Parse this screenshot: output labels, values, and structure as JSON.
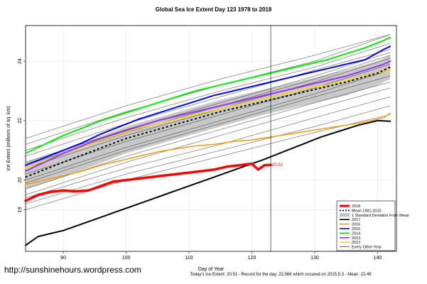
{
  "header": {
    "title": "Global Sea Ice Extent Day 123 1978 to 2018"
  },
  "credit": "http://sunshinehours.wordpress.com",
  "footer": "Today's Ice Extent: 20.51  -  Record for the day: 23.566 which occured on 2015.5.3  -  Mean: 22.49",
  "chart_data": {
    "type": "line",
    "xlabel": "Day of Year",
    "ylabel": "Ice Extent (millions of sq. km)",
    "xlim": [
      84,
      143
    ],
    "ylim": [
      17.6,
      25.2
    ],
    "xticks": [
      90,
      100,
      110,
      120,
      130,
      140
    ],
    "yticks": [
      19,
      20,
      22,
      24
    ],
    "vline_x": 123,
    "current_label": "20.51",
    "legend": {
      "placement": "bottom-right",
      "entries": [
        {
          "label": "2018",
          "color": "#ff0000",
          "style": "thick"
        },
        {
          "label": "Mean 1981-2010",
          "color": "#000000",
          "style": "dashed"
        },
        {
          "label": "1 Standard Deviation From Mean",
          "color": "#c0c0c0",
          "style": "band"
        },
        {
          "label": "2017",
          "color": "#000000",
          "style": "solid"
        },
        {
          "label": "2016",
          "color": "#ff9900",
          "style": "solid"
        },
        {
          "label": "2015",
          "color": "#0000ff",
          "style": "solid"
        },
        {
          "label": "2014",
          "color": "#00ee00",
          "style": "solid"
        },
        {
          "label": "2013",
          "color": "#9933ff",
          "style": "solid"
        },
        {
          "label": "2012",
          "color": "#ffdd00",
          "style": "solid"
        },
        {
          "label": "Every Other Year",
          "color": "#000000",
          "style": "thin"
        }
      ]
    },
    "mean": {
      "x": [
        84,
        90,
        95,
        100,
        105,
        110,
        115,
        120,
        125,
        130,
        135,
        140,
        142
      ],
      "y": [
        20.1,
        20.6,
        21.0,
        21.4,
        21.7,
        22.0,
        22.3,
        22.55,
        22.8,
        23.05,
        23.3,
        23.6,
        23.8
      ]
    },
    "std_band": {
      "x": [
        84,
        90,
        95,
        100,
        105,
        110,
        115,
        120,
        125,
        130,
        135,
        140,
        142
      ],
      "upper": [
        20.6,
        21.0,
        21.4,
        21.8,
        22.1,
        22.4,
        22.7,
        22.95,
        23.2,
        23.45,
        23.7,
        24.0,
        24.2
      ],
      "lower": [
        19.7,
        20.1,
        20.5,
        20.9,
        21.2,
        21.5,
        21.8,
        22.1,
        22.35,
        22.6,
        22.85,
        23.2,
        23.4
      ]
    },
    "series": [
      {
        "name": "2018",
        "color": "#ff0000",
        "width": 3.5,
        "x": [
          84,
          86,
          88,
          90,
          92,
          94,
          96,
          98,
          100,
          102,
          104,
          106,
          108,
          110,
          112,
          114,
          116,
          118,
          120,
          121,
          122,
          123
        ],
        "y": [
          19.3,
          19.5,
          19.6,
          19.65,
          19.62,
          19.65,
          19.8,
          19.95,
          20.0,
          20.05,
          20.1,
          20.15,
          20.2,
          20.25,
          20.3,
          20.35,
          20.45,
          20.5,
          20.55,
          20.35,
          20.5,
          20.51
        ]
      },
      {
        "name": "2017",
        "color": "#000000",
        "width": 2,
        "x": [
          84,
          86,
          88,
          90,
          92,
          94,
          96,
          98,
          100,
          102,
          104,
          106,
          108,
          110,
          112,
          114,
          116,
          118,
          120,
          122,
          125,
          128,
          131,
          134,
          137,
          140,
          142
        ],
        "y": [
          17.8,
          18.1,
          18.2,
          18.3,
          18.45,
          18.6,
          18.75,
          18.9,
          19.05,
          19.2,
          19.35,
          19.5,
          19.65,
          19.8,
          19.95,
          20.1,
          20.25,
          20.4,
          20.55,
          20.7,
          20.95,
          21.2,
          21.45,
          21.65,
          21.85,
          22.0,
          21.98
        ]
      },
      {
        "name": "2016",
        "color": "#ff9900",
        "width": 1.5,
        "x": [
          84,
          87,
          90,
          93,
          96,
          99,
          102,
          105,
          108,
          111,
          114,
          117,
          120,
          123,
          126,
          129,
          132,
          135,
          138,
          141,
          142
        ],
        "y": [
          19.85,
          20.0,
          20.15,
          20.3,
          20.5,
          20.65,
          20.8,
          20.95,
          21.05,
          21.15,
          21.2,
          21.3,
          21.35,
          21.45,
          21.55,
          21.65,
          21.75,
          21.85,
          21.95,
          22.1,
          22.25
        ]
      },
      {
        "name": "2015",
        "color": "#0000ff",
        "width": 2,
        "x": [
          84,
          87,
          90,
          93,
          96,
          99,
          102,
          105,
          108,
          111,
          114,
          117,
          120,
          123,
          126,
          129,
          132,
          135,
          138,
          141,
          142
        ],
        "y": [
          20.5,
          20.75,
          21.0,
          21.25,
          21.55,
          21.8,
          22.05,
          22.25,
          22.45,
          22.65,
          22.85,
          23.0,
          23.15,
          23.3,
          23.45,
          23.6,
          23.75,
          23.9,
          24.05,
          24.4,
          24.5
        ]
      },
      {
        "name": "2014",
        "color": "#00ee00",
        "width": 2,
        "x": [
          84,
          87,
          90,
          93,
          96,
          99,
          102,
          105,
          108,
          111,
          114,
          117,
          120,
          123,
          126,
          129,
          132,
          135,
          138,
          141,
          142
        ],
        "y": [
          20.9,
          21.2,
          21.5,
          21.75,
          22.0,
          22.2,
          22.4,
          22.6,
          22.8,
          23.0,
          23.15,
          23.3,
          23.45,
          23.6,
          23.75,
          23.9,
          24.05,
          24.25,
          24.45,
          24.7,
          24.8
        ]
      },
      {
        "name": "2013",
        "color": "#9933ff",
        "width": 2,
        "x": [
          84,
          87,
          90,
          93,
          96,
          99,
          102,
          105,
          108,
          111,
          114,
          117,
          120,
          123,
          126,
          129,
          132,
          135,
          138,
          141,
          142
        ],
        "y": [
          20.3,
          20.6,
          20.9,
          21.15,
          21.4,
          21.6,
          21.8,
          22.0,
          22.15,
          22.3,
          22.45,
          22.6,
          22.75,
          22.9,
          23.05,
          23.2,
          23.35,
          23.5,
          23.7,
          23.9,
          24.0
        ]
      },
      {
        "name": "2012",
        "color": "#ffdd00",
        "width": 1.5,
        "x": [
          84,
          87,
          90,
          93,
          96,
          99,
          102,
          105,
          108,
          111,
          114,
          117,
          120,
          123,
          126,
          129,
          132,
          135,
          138,
          141,
          142
        ],
        "y": [
          20.4,
          20.65,
          20.9,
          21.1,
          21.35,
          21.55,
          21.75,
          21.9,
          22.05,
          22.2,
          22.35,
          22.5,
          22.65,
          22.8,
          22.95,
          23.1,
          23.2,
          23.35,
          23.5,
          23.65,
          23.7
        ]
      }
    ],
    "background_years": [
      {
        "x": [
          84,
          100,
          115,
          130,
          142
        ],
        "y": [
          21.2,
          22.3,
          23.2,
          24.0,
          24.9
        ]
      },
      {
        "x": [
          84,
          100,
          115,
          130,
          142
        ],
        "y": [
          21.0,
          22.1,
          23.0,
          23.8,
          24.6
        ]
      },
      {
        "x": [
          84,
          100,
          115,
          130,
          142
        ],
        "y": [
          20.8,
          21.9,
          22.8,
          23.7,
          24.4
        ]
      },
      {
        "x": [
          84,
          100,
          115,
          130,
          142
        ],
        "y": [
          20.6,
          21.7,
          22.6,
          23.5,
          24.3
        ]
      },
      {
        "x": [
          84,
          100,
          115,
          130,
          142
        ],
        "y": [
          20.4,
          21.5,
          22.4,
          23.3,
          24.1
        ]
      },
      {
        "x": [
          84,
          100,
          115,
          130,
          142
        ],
        "y": [
          20.2,
          21.3,
          22.2,
          23.1,
          23.9
        ]
      },
      {
        "x": [
          84,
          100,
          115,
          130,
          142
        ],
        "y": [
          20.0,
          21.1,
          22.0,
          22.9,
          23.7
        ]
      },
      {
        "x": [
          84,
          100,
          115,
          130,
          142
        ],
        "y": [
          19.9,
          21.0,
          21.9,
          22.8,
          23.5
        ]
      },
      {
        "x": [
          84,
          100,
          115,
          130,
          142
        ],
        "y": [
          19.7,
          20.8,
          21.7,
          22.6,
          23.3
        ]
      },
      {
        "x": [
          84,
          100,
          115,
          130,
          142
        ],
        "y": [
          19.5,
          20.6,
          21.5,
          22.4,
          23.1
        ]
      },
      {
        "x": [
          84,
          100,
          115,
          130,
          142
        ],
        "y": [
          19.4,
          20.4,
          21.2,
          22.1,
          22.8
        ]
      },
      {
        "x": [
          84,
          100,
          115,
          130,
          142
        ],
        "y": [
          19.2,
          20.2,
          21.0,
          21.8,
          22.5
        ]
      },
      {
        "x": [
          84,
          100,
          115,
          130,
          142
        ],
        "y": [
          19.0,
          20.0,
          20.8,
          21.6,
          22.2
        ]
      },
      {
        "x": [
          84,
          100,
          115,
          130,
          142
        ],
        "y": [
          21.4,
          22.5,
          23.4,
          24.2,
          24.9
        ]
      },
      {
        "x": [
          84,
          100,
          115,
          130,
          142
        ],
        "y": [
          20.5,
          21.6,
          22.5,
          23.4,
          24.2
        ]
      }
    ]
  }
}
